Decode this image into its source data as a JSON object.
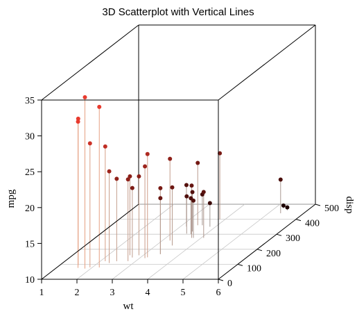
{
  "chart_data": {
    "type": "scatter",
    "title": "3D Scatterplot with Vertical Lines",
    "xlabel": "wt",
    "ylabel": "disp",
    "zlabel": "mpg",
    "xlim": [
      1,
      6
    ],
    "ylim": [
      0,
      500
    ],
    "zlim": [
      10,
      35
    ],
    "xticks": [
      "1",
      "2",
      "3",
      "4",
      "5",
      "6"
    ],
    "yticks": [
      "0",
      "100",
      "200",
      "300",
      "400",
      "500"
    ],
    "zticks": [
      "10",
      "15",
      "20",
      "25",
      "30",
      "35"
    ],
    "vertical_lines": true,
    "color_scale": {
      "low": "#1a0000",
      "high": "#e83a2e",
      "mapped_to": "mpg"
    },
    "points": [
      {
        "x": 2.62,
        "y": 160,
        "z": 21.0
      },
      {
        "x": 2.875,
        "y": 160,
        "z": 21.0
      },
      {
        "x": 2.32,
        "y": 108,
        "z": 22.8
      },
      {
        "x": 3.215,
        "y": 258,
        "z": 21.4
      },
      {
        "x": 3.44,
        "y": 360,
        "z": 18.7
      },
      {
        "x": 3.46,
        "y": 225,
        "z": 18.1
      },
      {
        "x": 3.57,
        "y": 360,
        "z": 14.3
      },
      {
        "x": 3.19,
        "y": 146.7,
        "z": 24.4
      },
      {
        "x": 3.15,
        "y": 140.8,
        "z": 22.8
      },
      {
        "x": 3.44,
        "y": 167.6,
        "z": 19.2
      },
      {
        "x": 3.44,
        "y": 167.6,
        "z": 17.8
      },
      {
        "x": 4.07,
        "y": 275.8,
        "z": 16.4
      },
      {
        "x": 3.73,
        "y": 275.8,
        "z": 17.3
      },
      {
        "x": 3.78,
        "y": 275.8,
        "z": 15.2
      },
      {
        "x": 5.25,
        "y": 472,
        "z": 10.4
      },
      {
        "x": 5.424,
        "y": 460,
        "z": 10.4
      },
      {
        "x": 5.345,
        "y": 440,
        "z": 14.7
      },
      {
        "x": 2.2,
        "y": 78.7,
        "z": 32.4
      },
      {
        "x": 1.615,
        "y": 75.7,
        "z": 30.4
      },
      {
        "x": 1.835,
        "y": 71.1,
        "z": 33.9
      },
      {
        "x": 2.465,
        "y": 120.1,
        "z": 21.5
      },
      {
        "x": 3.52,
        "y": 318,
        "z": 15.5
      },
      {
        "x": 3.435,
        "y": 304,
        "z": 15.2
      },
      {
        "x": 3.84,
        "y": 350,
        "z": 13.3
      },
      {
        "x": 3.845,
        "y": 400,
        "z": 19.2
      },
      {
        "x": 1.935,
        "y": 79,
        "z": 27.3
      },
      {
        "x": 2.14,
        "y": 120.3,
        "z": 26.0
      },
      {
        "x": 1.513,
        "y": 95.1,
        "z": 30.4
      },
      {
        "x": 3.17,
        "y": 351,
        "z": 15.8
      },
      {
        "x": 2.77,
        "y": 145,
        "z": 19.7
      },
      {
        "x": 3.57,
        "y": 301,
        "z": 15.0
      },
      {
        "x": 2.78,
        "y": 121,
        "z": 21.4
      }
    ]
  }
}
